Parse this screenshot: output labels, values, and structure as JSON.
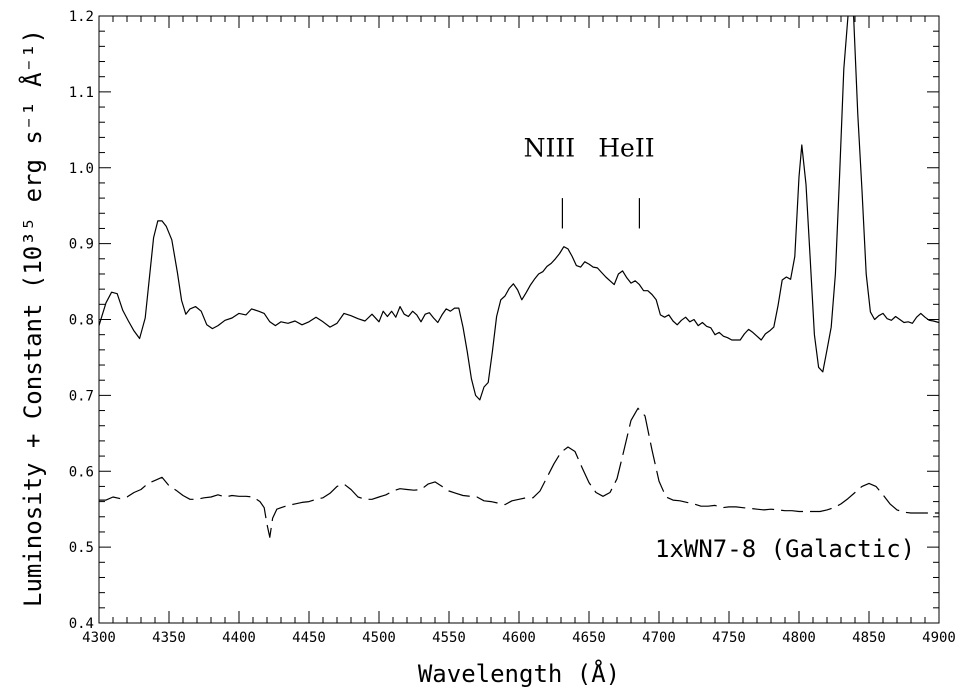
{
  "chart_data": {
    "type": "line",
    "title": "",
    "xlabel": "Wavelength  (Å)",
    "ylabel": "Luminosity + Constant (10³⁵ erg s⁻¹ Å⁻¹)",
    "xlim": [
      4300,
      4900
    ],
    "ylim": [
      0.4,
      1.2
    ],
    "x_ticks": [
      4300,
      4350,
      4400,
      4450,
      4500,
      4550,
      4600,
      4650,
      4700,
      4750,
      4800,
      4850,
      4900
    ],
    "y_ticks": [
      "0.4",
      "0.5",
      "0.6",
      "0.7",
      "0.8",
      "0.9",
      "1.0",
      "1.1",
      "1.2"
    ],
    "grid": false,
    "annotations": [
      {
        "text": "NIII",
        "x": 4631,
        "y": 0.93
      },
      {
        "text": "HeII",
        "x": 4686,
        "y": 0.93
      }
    ],
    "legend": {
      "text": "1xWN7-8 (Galactic)",
      "placement": "bottom-right"
    },
    "series": [
      {
        "style": "solid",
        "points": [
          [
            4300,
            0.792
          ],
          [
            4305,
            0.822
          ],
          [
            4309,
            0.836
          ],
          [
            4313,
            0.834
          ],
          [
            4317,
            0.812
          ],
          [
            4321,
            0.798
          ],
          [
            4325,
            0.785
          ],
          [
            4329,
            0.775
          ],
          [
            4333,
            0.802
          ],
          [
            4336,
            0.855
          ],
          [
            4339,
            0.908
          ],
          [
            4342,
            0.93
          ],
          [
            4345,
            0.93
          ],
          [
            4348,
            0.923
          ],
          [
            4352,
            0.905
          ],
          [
            4356,
            0.862
          ],
          [
            4359,
            0.825
          ],
          [
            4362,
            0.807
          ],
          [
            4365,
            0.814
          ],
          [
            4369,
            0.817
          ],
          [
            4373,
            0.811
          ],
          [
            4377,
            0.793
          ],
          [
            4381,
            0.788
          ],
          [
            4385,
            0.792
          ],
          [
            4390,
            0.799
          ],
          [
            4395,
            0.802
          ],
          [
            4400,
            0.808
          ],
          [
            4405,
            0.806
          ],
          [
            4409,
            0.814
          ],
          [
            4414,
            0.811
          ],
          [
            4418,
            0.808
          ],
          [
            4422,
            0.797
          ],
          [
            4426,
            0.792
          ],
          [
            4430,
            0.797
          ],
          [
            4435,
            0.795
          ],
          [
            4440,
            0.798
          ],
          [
            4445,
            0.793
          ],
          [
            4450,
            0.797
          ],
          [
            4455,
            0.803
          ],
          [
            4460,
            0.797
          ],
          [
            4465,
            0.79
          ],
          [
            4470,
            0.795
          ],
          [
            4475,
            0.808
          ],
          [
            4480,
            0.805
          ],
          [
            4485,
            0.801
          ],
          [
            4490,
            0.798
          ],
          [
            4495,
            0.807
          ],
          [
            4500,
            0.797
          ],
          [
            4503,
            0.811
          ],
          [
            4506,
            0.804
          ],
          [
            4509,
            0.811
          ],
          [
            4512,
            0.803
          ],
          [
            4515,
            0.817
          ],
          [
            4518,
            0.807
          ],
          [
            4521,
            0.804
          ],
          [
            4524,
            0.811
          ],
          [
            4527,
            0.806
          ],
          [
            4530,
            0.797
          ],
          [
            4533,
            0.807
          ],
          [
            4536,
            0.809
          ],
          [
            4539,
            0.802
          ],
          [
            4542,
            0.796
          ],
          [
            4545,
            0.806
          ],
          [
            4548,
            0.814
          ],
          [
            4551,
            0.811
          ],
          [
            4554,
            0.815
          ],
          [
            4557,
            0.815
          ],
          [
            4560,
            0.79
          ],
          [
            4563,
            0.758
          ],
          [
            4566,
            0.722
          ],
          [
            4569,
            0.7
          ],
          [
            4572,
            0.694
          ],
          [
            4575,
            0.711
          ],
          [
            4578,
            0.717
          ],
          [
            4581,
            0.758
          ],
          [
            4584,
            0.804
          ],
          [
            4587,
            0.826
          ],
          [
            4590,
            0.831
          ],
          [
            4593,
            0.841
          ],
          [
            4596,
            0.847
          ],
          [
            4599,
            0.839
          ],
          [
            4602,
            0.826
          ],
          [
            4605,
            0.835
          ],
          [
            4608,
            0.845
          ],
          [
            4611,
            0.853
          ],
          [
            4614,
            0.86
          ],
          [
            4617,
            0.863
          ],
          [
            4620,
            0.87
          ],
          [
            4623,
            0.874
          ],
          [
            4626,
            0.88
          ],
          [
            4629,
            0.887
          ],
          [
            4632,
            0.896
          ],
          [
            4635,
            0.893
          ],
          [
            4638,
            0.883
          ],
          [
            4641,
            0.871
          ],
          [
            4644,
            0.869
          ],
          [
            4647,
            0.876
          ],
          [
            4650,
            0.873
          ],
          [
            4653,
            0.869
          ],
          [
            4656,
            0.868
          ],
          [
            4659,
            0.862
          ],
          [
            4662,
            0.856
          ],
          [
            4665,
            0.851
          ],
          [
            4668,
            0.846
          ],
          [
            4671,
            0.86
          ],
          [
            4674,
            0.864
          ],
          [
            4677,
            0.855
          ],
          [
            4680,
            0.848
          ],
          [
            4683,
            0.851
          ],
          [
            4686,
            0.846
          ],
          [
            4689,
            0.838
          ],
          [
            4692,
            0.838
          ],
          [
            4695,
            0.833
          ],
          [
            4698,
            0.826
          ],
          [
            4701,
            0.806
          ],
          [
            4704,
            0.803
          ],
          [
            4707,
            0.806
          ],
          [
            4710,
            0.798
          ],
          [
            4713,
            0.793
          ],
          [
            4716,
            0.799
          ],
          [
            4719,
            0.803
          ],
          [
            4722,
            0.797
          ],
          [
            4725,
            0.8
          ],
          [
            4728,
            0.792
          ],
          [
            4731,
            0.796
          ],
          [
            4734,
            0.791
          ],
          [
            4737,
            0.789
          ],
          [
            4740,
            0.78
          ],
          [
            4743,
            0.783
          ],
          [
            4746,
            0.778
          ],
          [
            4749,
            0.776
          ],
          [
            4752,
            0.773
          ],
          [
            4755,
            0.773
          ],
          [
            4758,
            0.773
          ],
          [
            4761,
            0.781
          ],
          [
            4764,
            0.787
          ],
          [
            4767,
            0.783
          ],
          [
            4770,
            0.778
          ],
          [
            4773,
            0.773
          ],
          [
            4776,
            0.781
          ],
          [
            4779,
            0.785
          ],
          [
            4782,
            0.79
          ],
          [
            4785,
            0.818
          ],
          [
            4788,
            0.852
          ],
          [
            4791,
            0.856
          ],
          [
            4794,
            0.853
          ],
          [
            4797,
            0.883
          ],
          [
            4800,
            0.988
          ],
          [
            4802,
            1.03
          ],
          [
            4805,
            0.978
          ],
          [
            4808,
            0.88
          ],
          [
            4811,
            0.78
          ],
          [
            4814,
            0.737
          ],
          [
            4817,
            0.731
          ],
          [
            4820,
            0.76
          ],
          [
            4823,
            0.79
          ],
          [
            4826,
            0.86
          ],
          [
            4829,
            0.99
          ],
          [
            4832,
            1.13
          ],
          [
            4835,
            1.2
          ]
        ],
        "points_b": [
          [
            4839,
            1.2
          ],
          [
            4842,
            1.07
          ],
          [
            4845,
            0.97
          ],
          [
            4848,
            0.86
          ],
          [
            4851,
            0.81
          ],
          [
            4854,
            0.8
          ],
          [
            4857,
            0.805
          ],
          [
            4860,
            0.808
          ],
          [
            4863,
            0.801
          ],
          [
            4866,
            0.799
          ],
          [
            4869,
            0.804
          ],
          [
            4872,
            0.8
          ],
          [
            4875,
            0.796
          ],
          [
            4878,
            0.797
          ],
          [
            4881,
            0.795
          ],
          [
            4884,
            0.803
          ],
          [
            4887,
            0.808
          ],
          [
            4890,
            0.803
          ],
          [
            4893,
            0.799
          ],
          [
            4896,
            0.798
          ],
          [
            4900,
            0.796
          ]
        ]
      },
      {
        "style": "dashed",
        "points": [
          [
            4300,
            0.562
          ],
          [
            4305,
            0.562
          ],
          [
            4310,
            0.566
          ],
          [
            4315,
            0.564
          ],
          [
            4320,
            0.566
          ],
          [
            4325,
            0.572
          ],
          [
            4330,
            0.576
          ],
          [
            4335,
            0.584
          ],
          [
            4340,
            0.588
          ],
          [
            4345,
            0.592
          ],
          [
            4350,
            0.581
          ],
          [
            4355,
            0.575
          ],
          [
            4360,
            0.568
          ],
          [
            4365,
            0.563
          ],
          [
            4370,
            0.563
          ],
          [
            4375,
            0.565
          ],
          [
            4380,
            0.566
          ],
          [
            4385,
            0.569
          ],
          [
            4390,
            0.566
          ],
          [
            4395,
            0.568
          ],
          [
            4400,
            0.567
          ],
          [
            4405,
            0.567
          ],
          [
            4410,
            0.566
          ],
          [
            4415,
            0.56
          ],
          [
            4418,
            0.552
          ],
          [
            4420,
            0.53
          ],
          [
            4422,
            0.513
          ],
          [
            4424,
            0.538
          ],
          [
            4427,
            0.55
          ],
          [
            4430,
            0.552
          ],
          [
            4435,
            0.555
          ],
          [
            4440,
            0.557
          ],
          [
            4445,
            0.559
          ],
          [
            4450,
            0.56
          ],
          [
            4455,
            0.563
          ],
          [
            4460,
            0.565
          ],
          [
            4465,
            0.571
          ],
          [
            4470,
            0.58
          ],
          [
            4475,
            0.583
          ],
          [
            4480,
            0.576
          ],
          [
            4485,
            0.566
          ],
          [
            4490,
            0.563
          ],
          [
            4495,
            0.563
          ],
          [
            4500,
            0.566
          ],
          [
            4505,
            0.569
          ],
          [
            4510,
            0.574
          ],
          [
            4515,
            0.577
          ],
          [
            4520,
            0.576
          ],
          [
            4525,
            0.575
          ],
          [
            4530,
            0.576
          ],
          [
            4535,
            0.583
          ],
          [
            4540,
            0.586
          ],
          [
            4545,
            0.58
          ],
          [
            4550,
            0.574
          ],
          [
            4555,
            0.571
          ],
          [
            4560,
            0.568
          ],
          [
            4565,
            0.567
          ],
          [
            4570,
            0.566
          ],
          [
            4575,
            0.561
          ],
          [
            4580,
            0.56
          ],
          [
            4585,
            0.558
          ],
          [
            4590,
            0.556
          ],
          [
            4595,
            0.561
          ],
          [
            4600,
            0.563
          ],
          [
            4605,
            0.565
          ],
          [
            4610,
            0.565
          ],
          [
            4615,
            0.574
          ],
          [
            4620,
            0.592
          ],
          [
            4625,
            0.61
          ],
          [
            4630,
            0.625
          ],
          [
            4635,
            0.632
          ],
          [
            4640,
            0.626
          ],
          [
            4645,
            0.605
          ],
          [
            4650,
            0.585
          ],
          [
            4655,
            0.572
          ],
          [
            4660,
            0.567
          ],
          [
            4665,
            0.572
          ],
          [
            4670,
            0.59
          ],
          [
            4675,
            0.628
          ],
          [
            4680,
            0.667
          ],
          [
            4685,
            0.683
          ],
          [
            4690,
            0.673
          ],
          [
            4695,
            0.628
          ],
          [
            4700,
            0.587
          ],
          [
            4705,
            0.566
          ],
          [
            4710,
            0.562
          ],
          [
            4715,
            0.561
          ],
          [
            4720,
            0.559
          ],
          [
            4725,
            0.557
          ],
          [
            4730,
            0.554
          ],
          [
            4735,
            0.554
          ],
          [
            4740,
            0.555
          ],
          [
            4745,
            0.552
          ],
          [
            4750,
            0.553
          ],
          [
            4755,
            0.553
          ],
          [
            4760,
            0.552
          ],
          [
            4765,
            0.551
          ],
          [
            4770,
            0.55
          ],
          [
            4775,
            0.549
          ],
          [
            4780,
            0.55
          ],
          [
            4785,
            0.549
          ],
          [
            4790,
            0.548
          ],
          [
            4795,
            0.548
          ],
          [
            4800,
            0.547
          ],
          [
            4805,
            0.547
          ],
          [
            4810,
            0.547
          ],
          [
            4815,
            0.547
          ],
          [
            4820,
            0.549
          ],
          [
            4825,
            0.552
          ],
          [
            4830,
            0.557
          ],
          [
            4835,
            0.564
          ],
          [
            4840,
            0.572
          ],
          [
            4845,
            0.58
          ],
          [
            4850,
            0.584
          ],
          [
            4855,
            0.58
          ],
          [
            4860,
            0.569
          ],
          [
            4865,
            0.557
          ],
          [
            4870,
            0.549
          ],
          [
            4875,
            0.546
          ],
          [
            4880,
            0.545
          ],
          [
            4885,
            0.545
          ],
          [
            4890,
            0.545
          ],
          [
            4895,
            0.545
          ],
          [
            4900,
            0.545
          ]
        ]
      }
    ]
  }
}
